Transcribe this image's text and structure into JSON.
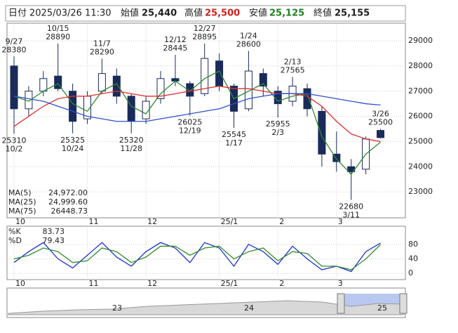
{
  "chart_data": {
    "type": "candlestick",
    "header": {
      "date_label": "日付",
      "datetime": "2025/03/26 11:30",
      "open_label": "始値",
      "open": {
        "value": 25440,
        "label": "25,440"
      },
      "high_label": "高値",
      "high": {
        "value": 25500,
        "label": "25,500"
      },
      "low_label": "安値",
      "low": {
        "value": 25125,
        "label": "25,125"
      },
      "close_label": "終値",
      "close": {
        "value": 25155,
        "label": "25,155"
      }
    },
    "categories": [
      "10",
      null,
      null,
      null,
      null,
      "11",
      null,
      null,
      null,
      "12",
      null,
      null,
      null,
      null,
      "25/1",
      null,
      null,
      null,
      "2",
      null,
      null,
      null,
      "3",
      null,
      null,
      null
    ],
    "open": [
      28000,
      26300,
      27000,
      27600,
      27000,
      25900,
      27000,
      27600,
      26800,
      25900,
      26700,
      27500,
      27300,
      26900,
      28200,
      27200,
      26300,
      27700,
      27000,
      26600,
      27100,
      26200,
      24500,
      24000,
      23900,
      25440
    ],
    "high": [
      28380,
      27200,
      27800,
      28890,
      27300,
      27000,
      28290,
      27900,
      26900,
      26800,
      27800,
      28445,
      27400,
      28895,
      28500,
      27300,
      28600,
      27900,
      27200,
      27565,
      27300,
      26400,
      25400,
      24300,
      25200,
      25500
    ],
    "low": [
      25310,
      26000,
      26800,
      27000,
      25325,
      25700,
      26900,
      26500,
      25320,
      25700,
      26500,
      27200,
      26025,
      26800,
      27000,
      25545,
      26200,
      26800,
      25955,
      26400,
      26000,
      24000,
      23800,
      22680,
      23700,
      25125
    ],
    "close": [
      26300,
      27000,
      27500,
      27100,
      25800,
      26800,
      27700,
      26800,
      25800,
      26600,
      27500,
      27400,
      26800,
      28300,
      27200,
      26200,
      27800,
      27200,
      26500,
      27200,
      26300,
      24500,
      24200,
      23800,
      25100,
      25155
    ],
    "up_color": "#ffffff",
    "down_color": "#1a2a5a",
    "series": [
      {
        "name": "MA(5)",
        "color": "#2e8b2e",
        "values": [
          26800,
          26600,
          27000,
          27300,
          26500,
          26200,
          27000,
          27300,
          26400,
          26100,
          26900,
          27400,
          27000,
          27500,
          27800,
          26700,
          27000,
          27300,
          26600,
          26800,
          26900,
          25200,
          24300,
          23700,
          24500,
          24972
        ],
        "value_labels": [
          null,
          null,
          null,
          null,
          null,
          null,
          null,
          null,
          null,
          null,
          null,
          null,
          null,
          null,
          null,
          null,
          null,
          null,
          null,
          null,
          null,
          null,
          null,
          null,
          null,
          "24,972.00"
        ]
      },
      {
        "name": "MA(25)",
        "color": "#e03030",
        "values": [
          25600,
          26000,
          26400,
          26700,
          26800,
          26800,
          26900,
          27000,
          26900,
          26800,
          26800,
          26900,
          27000,
          27100,
          27200,
          27100,
          27100,
          27000,
          26900,
          26900,
          26800,
          26400,
          25800,
          25300,
          25100,
          24999.6
        ],
        "value_labels": [
          null,
          null,
          null,
          null,
          null,
          null,
          null,
          null,
          null,
          null,
          null,
          null,
          null,
          null,
          null,
          null,
          null,
          null,
          null,
          null,
          null,
          null,
          null,
          null,
          null,
          "24,999.60"
        ]
      },
      {
        "name": "MA(75)",
        "color": "#3050d0",
        "values": [
          26800,
          26700,
          26600,
          26400,
          26200,
          26000,
          25900,
          25800,
          25800,
          25800,
          25900,
          26000,
          26100,
          26200,
          26300,
          26500,
          26700,
          26800,
          26900,
          26900,
          26900,
          26800,
          26700,
          26600,
          26500,
          26448.73
        ]
      }
    ],
    "annotations": [
      {
        "label": "9/27",
        "value": 28380
      },
      {
        "label": "10/2",
        "value": 25310
      },
      {
        "label": "10/15",
        "value": 28890
      },
      {
        "label": "10/24",
        "value": 25325
      },
      {
        "label": "11/7",
        "value": 28290
      },
      {
        "label": "11/28",
        "value": 25320
      },
      {
        "label": "12/12",
        "value": 28445
      },
      {
        "label": "12/19",
        "value": 26025
      },
      {
        "label": "12/27",
        "value": 28895
      },
      {
        "label": "1/17",
        "value": 25545
      },
      {
        "label": "1/24",
        "value": 28600
      },
      {
        "label": "2/3",
        "value": 25955
      },
      {
        "label": "2/13",
        "value": 27565
      },
      {
        "label": "3/11",
        "value": 22680
      },
      {
        "label": "3/26",
        "value": 25500
      }
    ],
    "ylim": [
      21970,
      29700
    ],
    "yticks": [
      23000,
      24000,
      25000,
      26000,
      27000,
      28000,
      29000
    ],
    "grid": true,
    "stochastic": {
      "ylim": [
        -17,
        130
      ],
      "yticks": [
        0,
        40,
        80
      ],
      "series": [
        {
          "name": "%K",
          "color": "#2030d0",
          "values": [
            30,
            60,
            85,
            40,
            15,
            50,
            85,
            45,
            20,
            60,
            85,
            70,
            30,
            85,
            70,
            20,
            80,
            60,
            25,
            75,
            40,
            10,
            20,
            5,
            60,
            83.73
          ]
        },
        {
          "name": "%D",
          "color": "#2e8b2e",
          "values": [
            40,
            50,
            70,
            60,
            30,
            35,
            70,
            60,
            30,
            45,
            75,
            75,
            50,
            70,
            75,
            40,
            60,
            70,
            35,
            60,
            55,
            20,
            20,
            10,
            40,
            79.43
          ]
        }
      ]
    },
    "navigator": {
      "labels": [
        "23",
        "24",
        "25"
      ]
    }
  }
}
